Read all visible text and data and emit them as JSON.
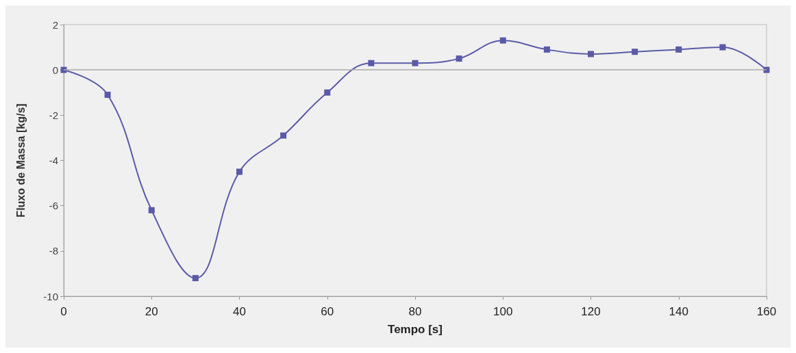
{
  "chart_data": {
    "type": "line",
    "xlabel": "Tempo [s]",
    "ylabel": "Fluxo de Massa [kg/s]",
    "x": [
      0,
      10,
      20,
      30,
      40,
      50,
      60,
      70,
      80,
      90,
      100,
      110,
      120,
      130,
      140,
      150,
      160
    ],
    "series": [
      {
        "color": "#5a5aa8",
        "values": [
          0,
          -1.1,
          -6.2,
          -9.2,
          -4.5,
          -2.9,
          -1.0,
          0.3,
          0.3,
          0.5,
          1.3,
          0.9,
          0.7,
          0.8,
          0.9,
          1.0,
          0.0
        ]
      }
    ],
    "xlim": [
      0,
      160
    ],
    "xticks": [
      0,
      20,
      40,
      60,
      80,
      100,
      120,
      140,
      160
    ],
    "ylim": [
      -10,
      2
    ],
    "yticks": [
      -10,
      -8,
      -6,
      -4,
      -2,
      0,
      2
    ],
    "ref_lines": [
      {
        "axis": "y",
        "value": 0,
        "color": "#aaaaaa"
      }
    ],
    "grid": false,
    "marker": "square",
    "line_style": "solid"
  }
}
